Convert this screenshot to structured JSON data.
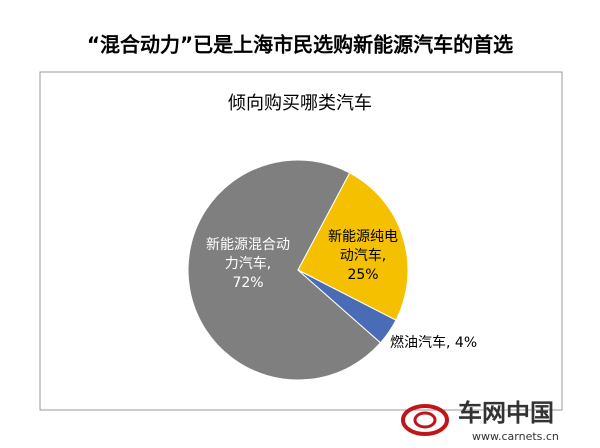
{
  "chart_data": {
    "type": "pie",
    "heading": "“混合动力”已是上海市民选购新能源汽车的首选",
    "title": "倾向购买哪类汽车",
    "categories": [
      "新能源混合动力汽车,",
      "新能源纯电动汽车,",
      "燃油汽车,"
    ],
    "values": [
      72,
      25,
      4
    ],
    "value_labels": [
      "72%",
      "25%",
      "4%"
    ],
    "colors": [
      "#7f7f7f",
      "#f5c000",
      "#4a6bb5"
    ]
  },
  "watermark": {
    "name": "车网中国",
    "url": "www.carnets.cn"
  }
}
